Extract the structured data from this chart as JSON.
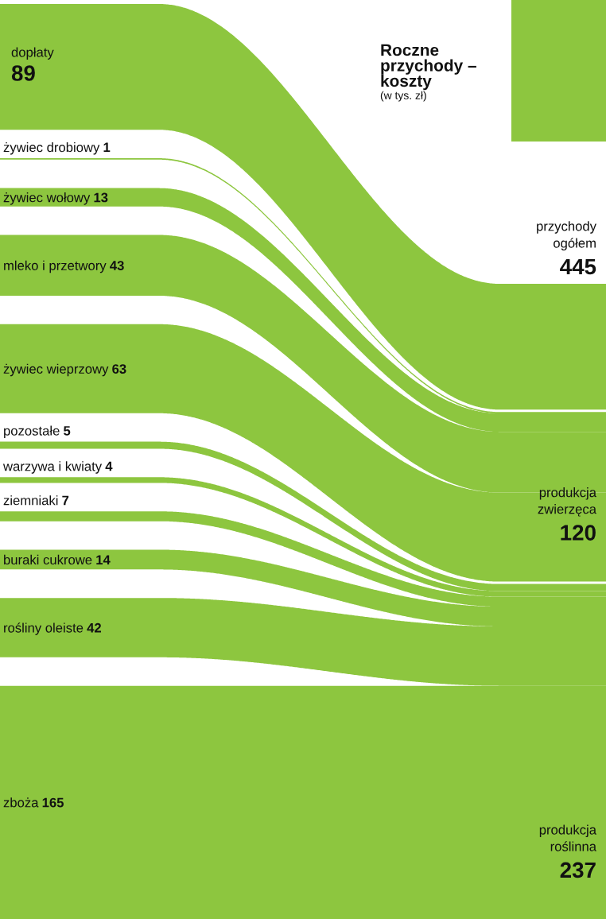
{
  "chart_data": {
    "type": "other",
    "title": "Roczne przychody – koszty",
    "subtitle": "(w tys. zł)",
    "categories": [
      "dopłaty",
      "żywiec drobiowy",
      "żywiec wołowy",
      "mleko i przetwory",
      "żywiec wieprzowy",
      "pozostałe",
      "warzywa i kwiaty",
      "ziemniaki",
      "buraki cukrowe",
      "rośliny oleiste",
      "zboża"
    ],
    "series": [
      {
        "color": "#8dc63f",
        "values": [
          89,
          null,
          null,
          null,
          null,
          null,
          null,
          null,
          null,
          null,
          null
        ]
      },
      {
        "name": "produkcja zwierzęca",
        "color": "#8dc63f",
        "values": [
          null,
          1,
          13,
          43,
          63,
          null,
          null,
          null,
          null,
          null,
          null
        ]
      },
      {
        "name": "produkcja roślinna",
        "color": "#8dc63f",
        "values": [
          null,
          null,
          null,
          null,
          null,
          5,
          4,
          7,
          14,
          42,
          165
        ]
      }
    ],
    "data_labels": true,
    "totals": [
      null,
      "120",
      "237"
    ],
    "annotations": [
      "przychody ogółem 445"
    ]
  }
}
